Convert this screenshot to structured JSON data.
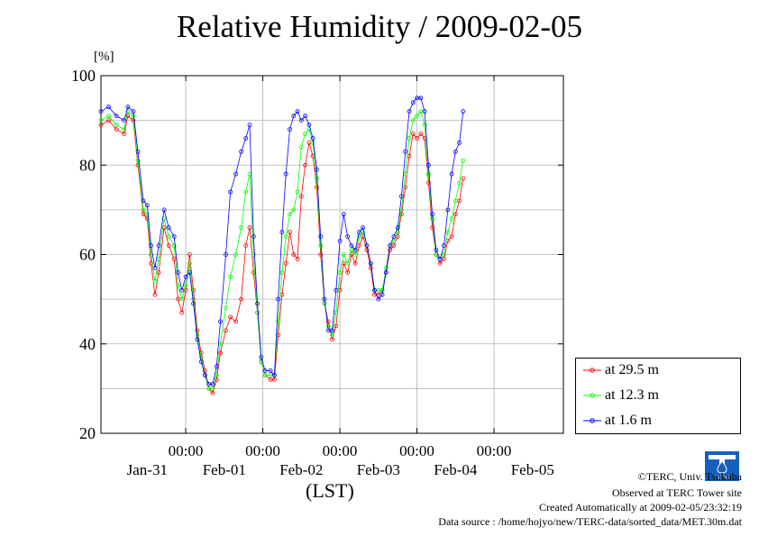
{
  "chart_data": {
    "type": "line",
    "title": "Relative Humidity / 2009-02-05",
    "ylabel": "[%]",
    "xlabel": "(LST)",
    "ylim": [
      20,
      100
    ],
    "yticks": [
      20,
      40,
      60,
      80,
      100
    ],
    "x_unit": "days since Jan-30 00:00",
    "xlim": [
      0.9,
      6.9
    ],
    "x_time_ticks": [
      {
        "x": 2,
        "time": "00:00",
        "date": "Jan-31"
      },
      {
        "x": 3,
        "time": "00:00",
        "date": "Feb-01"
      },
      {
        "x": 4,
        "time": "00:00",
        "date": "Feb-02"
      },
      {
        "x": 5,
        "time": "00:00",
        "date": "Feb-03"
      },
      {
        "x": 6,
        "time": "00:00",
        "date": "Feb-04"
      }
    ],
    "x_date_labels": [
      {
        "x": 1.5,
        "label": "Jan-31"
      },
      {
        "x": 2.5,
        "label": "Feb-01"
      },
      {
        "x": 3.5,
        "label": "Feb-02"
      },
      {
        "x": 4.5,
        "label": "Feb-03"
      },
      {
        "x": 5.5,
        "label": "Feb-04"
      },
      {
        "x": 6.5,
        "label": "Feb-05"
      }
    ],
    "grid": true,
    "legend_position": "bottom-right outside",
    "series": [
      {
        "name": "at 29.5 m",
        "color": "#ff0000",
        "points": [
          [
            0.9,
            89
          ],
          [
            1.0,
            90
          ],
          [
            1.1,
            88
          ],
          [
            1.2,
            87
          ],
          [
            1.25,
            91
          ],
          [
            1.32,
            90
          ],
          [
            1.38,
            80
          ],
          [
            1.45,
            69
          ],
          [
            1.5,
            68
          ],
          [
            1.55,
            58
          ],
          [
            1.6,
            51
          ],
          [
            1.65,
            56
          ],
          [
            1.72,
            66
          ],
          [
            1.78,
            62
          ],
          [
            1.85,
            59
          ],
          [
            1.9,
            50
          ],
          [
            1.95,
            47
          ],
          [
            2.0,
            52
          ],
          [
            2.05,
            60
          ],
          [
            2.1,
            52
          ],
          [
            2.15,
            43
          ],
          [
            2.2,
            38
          ],
          [
            2.25,
            34
          ],
          [
            2.3,
            30
          ],
          [
            2.35,
            29
          ],
          [
            2.4,
            32
          ],
          [
            2.45,
            38
          ],
          [
            2.52,
            43
          ],
          [
            2.58,
            46
          ],
          [
            2.65,
            45
          ],
          [
            2.72,
            50
          ],
          [
            2.78,
            62
          ],
          [
            2.83,
            66
          ],
          [
            2.88,
            56
          ],
          [
            2.93,
            47
          ],
          [
            2.98,
            36
          ],
          [
            3.03,
            33
          ],
          [
            3.1,
            32
          ],
          [
            3.15,
            32
          ],
          [
            3.2,
            42
          ],
          [
            3.25,
            51
          ],
          [
            3.3,
            58
          ],
          [
            3.35,
            65
          ],
          [
            3.4,
            60
          ],
          [
            3.45,
            59
          ],
          [
            3.5,
            73
          ],
          [
            3.55,
            80
          ],
          [
            3.6,
            85
          ],
          [
            3.65,
            82
          ],
          [
            3.7,
            75
          ],
          [
            3.75,
            60
          ],
          [
            3.8,
            49
          ],
          [
            3.85,
            45
          ],
          [
            3.9,
            41
          ],
          [
            3.95,
            44
          ],
          [
            4.0,
            52
          ],
          [
            4.05,
            58
          ],
          [
            4.1,
            56
          ],
          [
            4.15,
            60
          ],
          [
            4.2,
            58
          ],
          [
            4.25,
            62
          ],
          [
            4.3,
            64
          ],
          [
            4.35,
            61
          ],
          [
            4.4,
            57
          ],
          [
            4.45,
            51
          ],
          [
            4.5,
            51
          ],
          [
            4.55,
            52
          ],
          [
            4.6,
            56
          ],
          [
            4.65,
            61
          ],
          [
            4.7,
            62
          ],
          [
            4.75,
            64
          ],
          [
            4.8,
            69
          ],
          [
            4.85,
            75
          ],
          [
            4.9,
            82
          ],
          [
            4.95,
            87
          ],
          [
            5.0,
            86
          ],
          [
            5.05,
            87
          ],
          [
            5.1,
            86
          ],
          [
            5.15,
            76
          ],
          [
            5.2,
            66
          ],
          [
            5.25,
            60
          ],
          [
            5.3,
            58
          ],
          [
            5.35,
            59
          ],
          [
            5.4,
            63
          ],
          [
            5.45,
            64
          ],
          [
            5.5,
            69
          ],
          [
            5.55,
            72
          ],
          [
            5.6,
            77
          ]
        ]
      },
      {
        "name": "at 12.3 m",
        "color": "#00ff00",
        "points": [
          [
            0.9,
            90
          ],
          [
            1.0,
            91
          ],
          [
            1.1,
            89
          ],
          [
            1.2,
            88
          ],
          [
            1.25,
            92
          ],
          [
            1.32,
            91
          ],
          [
            1.38,
            81
          ],
          [
            1.45,
            70
          ],
          [
            1.5,
            69
          ],
          [
            1.55,
            60
          ],
          [
            1.6,
            54
          ],
          [
            1.65,
            59
          ],
          [
            1.72,
            68
          ],
          [
            1.78,
            64
          ],
          [
            1.85,
            62
          ],
          [
            1.9,
            53
          ],
          [
            1.95,
            50
          ],
          [
            2.0,
            53
          ],
          [
            2.05,
            58
          ],
          [
            2.1,
            50
          ],
          [
            2.15,
            42
          ],
          [
            2.2,
            37
          ],
          [
            2.25,
            33
          ],
          [
            2.3,
            30
          ],
          [
            2.35,
            30
          ],
          [
            2.4,
            33
          ],
          [
            2.45,
            40
          ],
          [
            2.52,
            48
          ],
          [
            2.58,
            55
          ],
          [
            2.65,
            60
          ],
          [
            2.72,
            66
          ],
          [
            2.78,
            74
          ],
          [
            2.83,
            78
          ],
          [
            2.88,
            60
          ],
          [
            2.93,
            47
          ],
          [
            2.98,
            36
          ],
          [
            3.03,
            33
          ],
          [
            3.1,
            33
          ],
          [
            3.15,
            33
          ],
          [
            3.2,
            45
          ],
          [
            3.25,
            56
          ],
          [
            3.3,
            64
          ],
          [
            3.35,
            69
          ],
          [
            3.4,
            70
          ],
          [
            3.45,
            74
          ],
          [
            3.5,
            84
          ],
          [
            3.55,
            87
          ],
          [
            3.6,
            88
          ],
          [
            3.65,
            85
          ],
          [
            3.7,
            77
          ],
          [
            3.75,
            62
          ],
          [
            3.8,
            49
          ],
          [
            3.85,
            44
          ],
          [
            3.9,
            42
          ],
          [
            3.95,
            47
          ],
          [
            4.0,
            56
          ],
          [
            4.05,
            60
          ],
          [
            4.1,
            58
          ],
          [
            4.15,
            61
          ],
          [
            4.2,
            60
          ],
          [
            4.25,
            64
          ],
          [
            4.3,
            65
          ],
          [
            4.35,
            62
          ],
          [
            4.4,
            58
          ],
          [
            4.45,
            52
          ],
          [
            4.5,
            52
          ],
          [
            4.55,
            52
          ],
          [
            4.6,
            57
          ],
          [
            4.65,
            62
          ],
          [
            4.7,
            63
          ],
          [
            4.75,
            65
          ],
          [
            4.8,
            70
          ],
          [
            4.85,
            78
          ],
          [
            4.9,
            86
          ],
          [
            4.95,
            90
          ],
          [
            5.0,
            91
          ],
          [
            5.05,
            92
          ],
          [
            5.1,
            89
          ],
          [
            5.15,
            78
          ],
          [
            5.2,
            68
          ],
          [
            5.25,
            60
          ],
          [
            5.3,
            59
          ],
          [
            5.35,
            60
          ],
          [
            5.4,
            65
          ],
          [
            5.45,
            68
          ],
          [
            5.5,
            72
          ],
          [
            5.55,
            76
          ],
          [
            5.6,
            81
          ]
        ]
      },
      {
        "name": "at 1.6 m",
        "color": "#0000ff",
        "points": [
          [
            0.9,
            92
          ],
          [
            1.0,
            93
          ],
          [
            1.1,
            91
          ],
          [
            1.2,
            90
          ],
          [
            1.25,
            93
          ],
          [
            1.32,
            92
          ],
          [
            1.38,
            83
          ],
          [
            1.45,
            72
          ],
          [
            1.5,
            71
          ],
          [
            1.55,
            62
          ],
          [
            1.6,
            57
          ],
          [
            1.65,
            62
          ],
          [
            1.72,
            70
          ],
          [
            1.78,
            66
          ],
          [
            1.85,
            64
          ],
          [
            1.9,
            56
          ],
          [
            1.95,
            52
          ],
          [
            2.0,
            55
          ],
          [
            2.05,
            56
          ],
          [
            2.1,
            49
          ],
          [
            2.15,
            41
          ],
          [
            2.2,
            36
          ],
          [
            2.25,
            33
          ],
          [
            2.3,
            31
          ],
          [
            2.35,
            31
          ],
          [
            2.4,
            35
          ],
          [
            2.45,
            45
          ],
          [
            2.52,
            60
          ],
          [
            2.58,
            74
          ],
          [
            2.65,
            78
          ],
          [
            2.72,
            83
          ],
          [
            2.78,
            86
          ],
          [
            2.83,
            89
          ],
          [
            2.88,
            64
          ],
          [
            2.93,
            49
          ],
          [
            2.98,
            37
          ],
          [
            3.03,
            34
          ],
          [
            3.1,
            34
          ],
          [
            3.15,
            33
          ],
          [
            3.2,
            50
          ],
          [
            3.25,
            65
          ],
          [
            3.3,
            78
          ],
          [
            3.35,
            88
          ],
          [
            3.4,
            91
          ],
          [
            3.45,
            92
          ],
          [
            3.5,
            90
          ],
          [
            3.55,
            91
          ],
          [
            3.6,
            89
          ],
          [
            3.65,
            86
          ],
          [
            3.7,
            79
          ],
          [
            3.75,
            64
          ],
          [
            3.8,
            50
          ],
          [
            3.85,
            43
          ],
          [
            3.9,
            43
          ],
          [
            3.95,
            52
          ],
          [
            4.0,
            63
          ],
          [
            4.05,
            69
          ],
          [
            4.1,
            64
          ],
          [
            4.15,
            62
          ],
          [
            4.2,
            61
          ],
          [
            4.25,
            65
          ],
          [
            4.3,
            66
          ],
          [
            4.35,
            62
          ],
          [
            4.4,
            58
          ],
          [
            4.45,
            52
          ],
          [
            4.5,
            50
          ],
          [
            4.55,
            51
          ],
          [
            4.6,
            56
          ],
          [
            4.65,
            62
          ],
          [
            4.7,
            64
          ],
          [
            4.75,
            66
          ],
          [
            4.8,
            73
          ],
          [
            4.85,
            83
          ],
          [
            4.9,
            92
          ],
          [
            4.95,
            94
          ],
          [
            5.0,
            95
          ],
          [
            5.05,
            95
          ],
          [
            5.1,
            92
          ],
          [
            5.15,
            80
          ],
          [
            5.2,
            69
          ],
          [
            5.25,
            61
          ],
          [
            5.3,
            59
          ],
          [
            5.35,
            62
          ],
          [
            5.4,
            70
          ],
          [
            5.45,
            78
          ],
          [
            5.5,
            83
          ],
          [
            5.55,
            85
          ],
          [
            5.6,
            92
          ]
        ]
      }
    ]
  },
  "labels": {
    "lst": "(LST)",
    "copyright": "©TERC, Univ. Tsukuba",
    "observed": "Observed at TERC Tower site",
    "created": "Created Automatically at 2009-02-05/23:32:19",
    "source": "Data source : /home/hojyo/new/TERC-data/sorted_data/MET.30m.dat",
    "logo_text": "TERC"
  }
}
